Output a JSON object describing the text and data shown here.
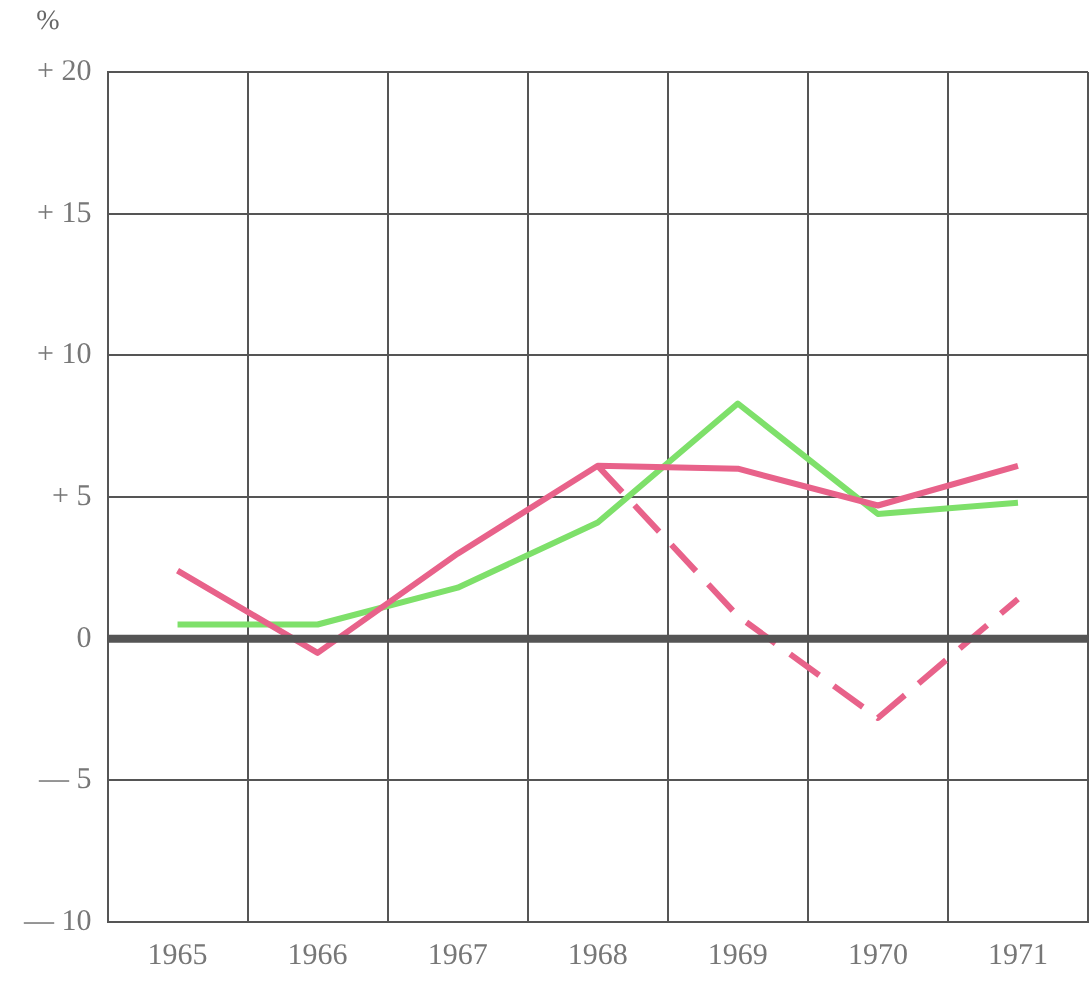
{
  "chart_data": {
    "type": "line",
    "ylabel": "%",
    "categories": [
      "1965",
      "1966",
      "1967",
      "1968",
      "1969",
      "1970",
      "1971"
    ],
    "series": [
      {
        "color": "#e8628a",
        "values": [
          2.4,
          -0.5,
          3.0,
          6.1,
          6.0,
          4.7,
          6.1
        ],
        "line_style": "solid"
      },
      {
        "color": "#7ee06a",
        "values": [
          0.5,
          0.5,
          1.8,
          4.1,
          8.3,
          4.4,
          4.8
        ],
        "line_style": "solid"
      },
      {
        "color": "#e8628a",
        "values": [
          null,
          null,
          null,
          6.1,
          0.8,
          -2.8,
          1.4
        ],
        "line_style": "dashed"
      }
    ],
    "ylim": [
      -10,
      20
    ],
    "yticks": [
      {
        "value": -10,
        "label": "— 10"
      },
      {
        "value": -5,
        "label": "— 5"
      },
      0,
      {
        "value": 5,
        "label": "+ 5"
      },
      {
        "value": 10,
        "label": "+ 10"
      },
      {
        "value": 15,
        "label": "+ 15"
      },
      {
        "value": 20,
        "label": "+ 20"
      }
    ],
    "ref_lines": [
      {
        "axis": "y",
        "value": 0,
        "color": "#555555"
      }
    ],
    "grid": true,
    "legend": false,
    "marker": "none"
  }
}
